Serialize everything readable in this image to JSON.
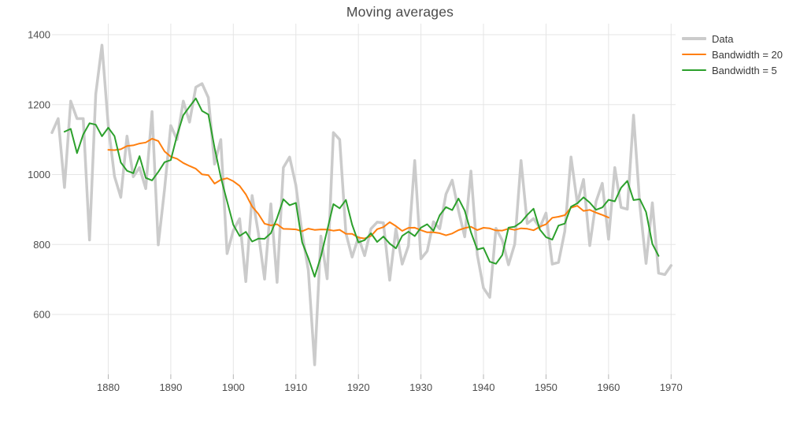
{
  "chart_data": {
    "type": "line",
    "title": "Moving averages",
    "grid": true,
    "legend_position": "top-right-outside",
    "colors": {
      "grid": "#e5e5e5",
      "tick": "#b5b5b5",
      "tick_label": "#4d4d4d",
      "title": "#4a4a4a"
    },
    "x_axis": {
      "range": [
        1871,
        1970
      ],
      "ticks": [
        1880,
        1890,
        1900,
        1910,
        1920,
        1930,
        1940,
        1950,
        1960,
        1970
      ]
    },
    "y_axis": {
      "range": [
        429,
        1431
      ],
      "ticks": [
        600,
        800,
        1000,
        1200,
        1400
      ]
    },
    "series": [
      {
        "name": "Data",
        "color": "#cbcbcb",
        "line_width": 3.5,
        "x_start": 1871,
        "x_step": 1,
        "values": [
          1120,
          1160,
          963,
          1210,
          1160,
          1160,
          813,
          1230,
          1370,
          1140,
          995,
          935,
          1110,
          994,
          1020,
          960,
          1180,
          799,
          958,
          1140,
          1100,
          1210,
          1150,
          1250,
          1260,
          1220,
          1030,
          1100,
          774,
          840,
          874,
          694,
          940,
          833,
          701,
          916,
          692,
          1020,
          1050,
          969,
          831,
          726,
          456,
          824,
          702,
          1120,
          1100,
          832,
          764,
          821,
          768,
          845,
          864,
          862,
          698,
          845,
          744,
          796,
          1040,
          759,
          781,
          865,
          845,
          944,
          984,
          897,
          822,
          1010,
          771,
          676,
          649,
          846,
          812,
          742,
          801,
          1040,
          860,
          874,
          848,
          890,
          744,
          749,
          838,
          1050,
          918,
          986,
          797,
          923,
          975,
          815,
          1020,
          906,
          901,
          1170,
          912,
          746,
          919,
          718,
          714,
          740
        ]
      },
      {
        "name": "Bandwidth = 20",
        "color": "#ff7f0e",
        "line_width": 2,
        "x_start": 1880,
        "x_step": 1,
        "values": [
          1070.85,
          1069.85,
          1072.35,
          1081.7,
          1083.7,
          1088.7,
          1091.7,
          1102.55,
          1096.05,
          1066.25,
          1051.25,
          1045.2,
          1033.15,
          1024.65,
          1016.6,
          1000.65,
          998.45,
          974.05,
          985.1,
          989.7,
          981.15,
          967.7,
          943.5,
          908.8,
          887.5,
          859.6,
          854.6,
          858.1,
          844.7,
          844.2,
          843.25,
          837.95,
          845.5,
          841.7,
          843.15,
          843,
          839.45,
          842.05,
          830.85,
          830.35,
          819.85,
          817.35,
          824.3,
          843.75,
          849.75,
          863.85,
          852.7,
          838.8,
          847.7,
          848.05,
          840.8,
          834.85,
          834.9,
          832.3,
          826.3,
          831.45,
          841.2,
          847,
          850.9,
          841.3,
          847.85,
          846,
          840.2,
          839.85,
          845.15,
          841.85,
          846.3,
          845.05,
          840.7,
          850.9,
          857.85,
          876.4,
          879.4,
          883.85,
          905.25,
          910.8,
          896.1,
          899.05,
          891.25,
          884.55,
          877.05
        ]
      },
      {
        "name": "Bandwidth = 5",
        "color": "#2ca02c",
        "line_width": 2,
        "x_start": 1873,
        "x_step": 1,
        "values": [
          1122.6,
          1130.6,
          1061.2,
          1114.6,
          1146.6,
          1142.6,
          1109.6,
          1134,
          1110,
          1034.8,
          1010.8,
          1003.8,
          1052.8,
          990.6,
          983.4,
          1007.4,
          1035.4,
          1041.4,
          1111.6,
          1170,
          1194,
          1218,
          1182,
          1172,
          1076.8,
          992.8,
          923.6,
          856.4,
          824.4,
          836.2,
          808.4,
          816.8,
          816.4,
          832.4,
          875.8,
          929.4,
          912.4,
          919.2,
          806.4,
          761.2,
          707.8,
          765.6,
          840.4,
          915.6,
          903.6,
          927.4,
          857,
          806,
          812.4,
          832,
          807.4,
          822.8,
          802.6,
          789,
          824.6,
          836.8,
          824,
          848.2,
          858,
          838.8,
          883.8,
          907,
          898.4,
          931.4,
          896.8,
          835.2,
          785.6,
          790.4,
          750.8,
          745,
          770,
          848.2,
          851,
          863.4,
          884.6,
          902.4,
          843.2,
          821,
          813.8,
          854.2,
          859.8,
          908.2,
          917.8,
          934.8,
          919.8,
          899.2,
          906,
          927.8,
          923.4,
          962.4,
          981.8,
          927,
          929.6,
          893,
          801.8,
          767.4
        ]
      }
    ]
  }
}
